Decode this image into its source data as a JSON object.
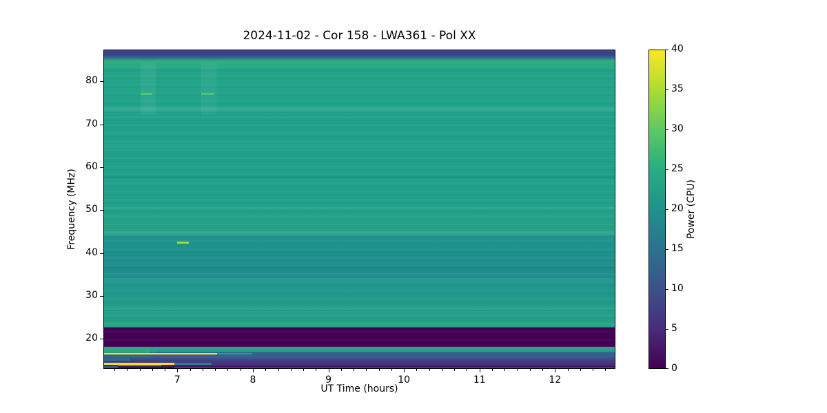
{
  "chart_data": {
    "type": "heatmap",
    "title": "2024-11-02 - Cor 158 - LWA361 - Pol XX",
    "xlabel": "UT Time (hours)",
    "ylabel": "Frequency (MHz)",
    "xlim": [
      6.02,
      12.8
    ],
    "ylim": [
      13.0,
      87.4
    ],
    "xticks": [
      7,
      8,
      9,
      10,
      11,
      12
    ],
    "x_minor_ticks_per_hour": 6,
    "yticks": [
      20,
      30,
      40,
      50,
      60,
      70,
      80
    ],
    "grid": false,
    "legend": null,
    "colorbar": {
      "label": "Power (CPU)",
      "lim": [
        0,
        40
      ],
      "ticks": [
        0,
        5,
        10,
        15,
        20,
        25,
        30,
        35,
        40
      ],
      "colormap": "viridis",
      "stops": [
        {
          "v": 0,
          "c": "#440154"
        },
        {
          "v": 5,
          "c": "#472d7b"
        },
        {
          "v": 10,
          "c": "#3b528b"
        },
        {
          "v": 15,
          "c": "#2c728e"
        },
        {
          "v": 20,
          "c": "#21918c"
        },
        {
          "v": 25,
          "c": "#27ad81"
        },
        {
          "v": 30,
          "c": "#5ec962"
        },
        {
          "v": 35,
          "c": "#aadc32"
        },
        {
          "v": 40,
          "c": "#fde725"
        }
      ]
    },
    "freq_profile": [
      {
        "f": 87.4,
        "c": "#3c3a8a"
      },
      {
        "f": 86.3,
        "c": "#37478c"
      },
      {
        "f": 85.5,
        "c": "#2e728e"
      },
      {
        "f": 84.8,
        "c": "#31b47c"
      },
      {
        "f": 84.0,
        "c": "#2bac81"
      },
      {
        "f": 83.0,
        "c": "#23a489"
      },
      {
        "f": 74.0,
        "c": "#21a38a"
      },
      {
        "f": 63.0,
        "c": "#1fa189"
      },
      {
        "f": 52.0,
        "c": "#21a18a"
      },
      {
        "f": 45.0,
        "c": "#24a287"
      },
      {
        "f": 43.5,
        "c": "#1f938d"
      },
      {
        "f": 36.0,
        "c": "#1f8f8d"
      },
      {
        "f": 30.0,
        "c": "#219a8b"
      },
      {
        "f": 24.0,
        "c": "#23a188"
      },
      {
        "f": 23.5,
        "c": "#27a884"
      },
      {
        "f": 22.6,
        "c": "#27a884"
      },
      {
        "f": 22.55,
        "c": "#440154"
      },
      {
        "f": 18.05,
        "c": "#440154"
      },
      {
        "f": 18.0,
        "c": "#2e9c8d"
      },
      {
        "f": 16.85,
        "c": "#2e9c8d"
      },
      {
        "f": 16.8,
        "c": "#31688e"
      },
      {
        "f": 15.3,
        "c": "#3b528b"
      },
      {
        "f": 14.0,
        "c": "#472d7b"
      },
      {
        "f": 13.0,
        "c": "#440154"
      }
    ],
    "features": [
      {
        "name": "rfi-dash-77mhz-a",
        "x1": 6.5,
        "x2": 6.66,
        "f1": 76.9,
        "f2": 77.5,
        "c": "#4ac16d"
      },
      {
        "name": "rfi-dash-77mhz-b",
        "x1": 7.31,
        "x2": 7.47,
        "f1": 76.9,
        "f2": 77.5,
        "c": "#4ac16d"
      },
      {
        "name": "rfi-dash-42mhz",
        "x1": 6.99,
        "x2": 7.14,
        "f1": 42.3,
        "f2": 42.8,
        "c": "#a0da39"
      },
      {
        "name": "bright-column-a",
        "x1": 6.5,
        "x2": 6.7,
        "f1": 72.5,
        "f2": 84.3,
        "c": "#ffffff",
        "o": 0.06
      },
      {
        "name": "bright-column-b",
        "x1": 7.31,
        "x2": 7.51,
        "f1": 72.5,
        "f2": 84.3,
        "c": "#ffffff",
        "o": 0.05
      },
      {
        "name": "band-stripe-73mhz",
        "x1": 6.02,
        "x2": 12.8,
        "f1": 73.2,
        "f2": 74.2,
        "c": "#ffffff",
        "o": 0.07
      },
      {
        "name": "band-stripe-65mhz",
        "x1": 6.02,
        "x2": 12.8,
        "f1": 64.8,
        "f2": 65.5,
        "c": "#ffffff",
        "o": 0.05
      },
      {
        "name": "band-stripe-58mhz",
        "x1": 6.02,
        "x2": 12.8,
        "f1": 57.6,
        "f2": 58.2,
        "c": "#000000",
        "o": 0.05
      },
      {
        "name": "band-stripe-50mhz",
        "x1": 6.02,
        "x2": 12.8,
        "f1": 50.3,
        "f2": 51.0,
        "c": "#ffffff",
        "o": 0.05
      },
      {
        "name": "band-stripe-44mhz",
        "x1": 6.02,
        "x2": 12.8,
        "f1": 44.3,
        "f2": 45.2,
        "c": "#ffffff",
        "o": 0.07
      },
      {
        "name": "band-stripe-37mhz",
        "x1": 6.02,
        "x2": 12.8,
        "f1": 36.6,
        "f2": 37.2,
        "c": "#000000",
        "o": 0.05
      },
      {
        "name": "band-stripe-34mhz",
        "x1": 6.02,
        "x2": 12.8,
        "f1": 33.6,
        "f2": 34.3,
        "c": "#ffffff",
        "o": 0.05
      },
      {
        "name": "band-stripe-27mhz",
        "x1": 6.02,
        "x2": 12.8,
        "f1": 26.9,
        "f2": 27.5,
        "c": "#ffffff",
        "o": 0.05
      },
      {
        "name": "rfi-blob-17mhz",
        "x1": 6.02,
        "x2": 6.62,
        "f1": 16.8,
        "f2": 17.9,
        "c": "#35b779",
        "o": 0.55
      },
      {
        "name": "rfi-step-17mhz",
        "x1": 6.55,
        "x2": 6.72,
        "f1": 17.0,
        "f2": 17.7,
        "c": "#27ad81",
        "o": 0.5
      },
      {
        "name": "rfi-yellow-16.6mhz",
        "x1": 6.02,
        "x2": 7.52,
        "f1": 16.45,
        "f2": 16.8,
        "c": "#f2e51d"
      },
      {
        "name": "rfi-teal-16.6mhz",
        "x1": 7.52,
        "x2": 7.98,
        "f1": 16.45,
        "f2": 16.8,
        "c": "#2a9d8a"
      },
      {
        "name": "rfi-teal-16mhz",
        "x1": 6.15,
        "x2": 6.6,
        "f1": 15.9,
        "f2": 16.2,
        "c": "#2c728e"
      },
      {
        "name": "rfi-blue-15mhz",
        "x1": 6.02,
        "x2": 6.36,
        "f1": 15.1,
        "f2": 15.7,
        "c": "#31688e"
      },
      {
        "name": "rfi-yellow-14.4mhz",
        "x1": 6.02,
        "x2": 6.95,
        "f1": 14.2,
        "f2": 14.55,
        "c": "#f2e51d"
      },
      {
        "name": "rfi-teal-14.4mhz",
        "x1": 6.95,
        "x2": 7.44,
        "f1": 14.2,
        "f2": 14.55,
        "c": "#26828e"
      },
      {
        "name": "rfi-teal-14mhz",
        "x1": 6.2,
        "x2": 6.78,
        "f1": 13.8,
        "f2": 14.15,
        "c": "#2a9d8a"
      },
      {
        "name": "rfi-faint-13.5mhz",
        "x1": 6.95,
        "x2": 12.8,
        "f1": 13.35,
        "f2": 13.6,
        "c": "#31688e",
        "o": 0.6
      },
      {
        "name": "rfi-stub-13mhz",
        "x1": 6.02,
        "x2": 6.2,
        "f1": 13.1,
        "f2": 13.75,
        "c": "#3b528b"
      }
    ]
  }
}
